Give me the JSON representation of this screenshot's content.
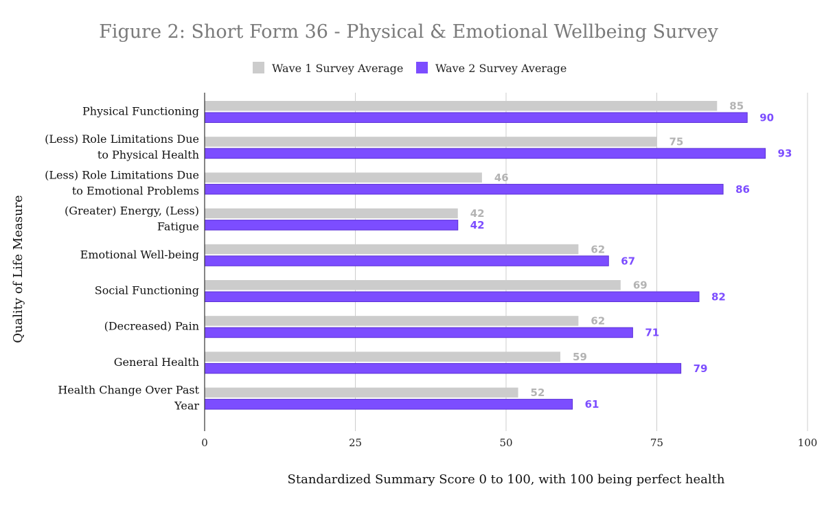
{
  "chart_data": {
    "type": "bar",
    "orientation": "horizontal",
    "title": "Figure 2: Short Form 36 - Physical & Emotional Wellbeing Survey",
    "xlabel": "Standardized Summary Score 0 to 100, with 100 being perfect health",
    "ylabel": "Quality of Life Measure",
    "xlim": [
      0,
      100
    ],
    "xticks": [
      "0",
      "25",
      "50",
      "75",
      "100"
    ],
    "grid": true,
    "legend_position": "top",
    "categories": [
      [
        "Physical Functioning"
      ],
      [
        "(Less) Role Limitations Due",
        "to Physical Health"
      ],
      [
        "(Less) Role Limitations Due",
        "to Emotional Problems"
      ],
      [
        "(Greater) Energy, (Less)",
        "Fatigue"
      ],
      [
        "Emotional Well-being"
      ],
      [
        "Social Functioning"
      ],
      [
        "(Decreased) Pain"
      ],
      [
        "General Health"
      ],
      [
        "Health Change Over Past",
        "Year"
      ]
    ],
    "series": [
      {
        "name": "Wave 1 Survey Average",
        "color": "#cccccc",
        "label_color": "#b3b3b3",
        "values": [
          85,
          75,
          46,
          42,
          62,
          69,
          62,
          59,
          52
        ]
      },
      {
        "name": "Wave 2 Survey Average",
        "color": "#7c4dff",
        "label_color": "#7c4dff",
        "values": [
          90,
          93,
          86,
          42,
          67,
          82,
          71,
          79,
          61
        ]
      }
    ]
  }
}
